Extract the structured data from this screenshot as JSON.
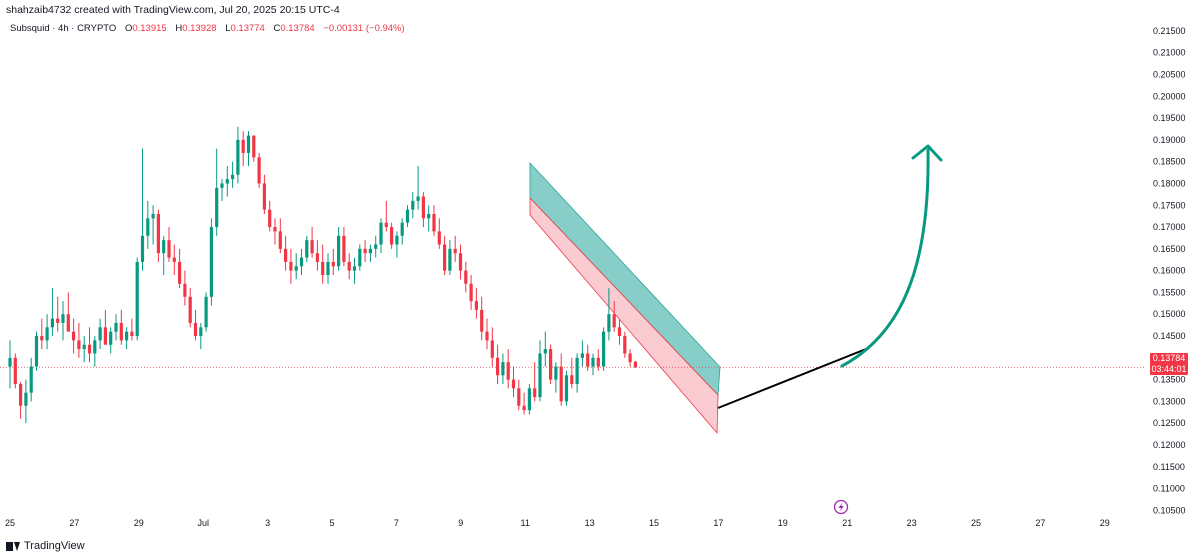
{
  "header": {
    "credit": "shahzaib4732 created with TradingView.com, Jul 20, 2025 20:15 UTC-4",
    "symbol": "Subsquid · 4h · CRYPTO",
    "o_label": "O",
    "o_value": "0.13915",
    "h_label": "H",
    "h_value": "0.13928",
    "l_label": "L",
    "l_value": "0.13774",
    "c_label": "C",
    "c_value": "0.13784",
    "change": "−0.00131 (−0.94%)"
  },
  "price_tag": {
    "price": "0.13784",
    "countdown": "03:44:01"
  },
  "footer": {
    "brand": "TradingView"
  },
  "colors": {
    "up": "#089981",
    "down": "#f23645",
    "arrow": "#089981",
    "channel_up": "#26a69a",
    "channel_down": "#f7a9b0"
  },
  "icons": {
    "flash": "lightning-icon"
  },
  "chart_data": {
    "type": "candlestick",
    "ylim": [
      0.1005,
      0.2175
    ],
    "y_ticks": [
      "0.21500",
      "0.21000",
      "0.20500",
      "0.20000",
      "0.19500",
      "0.19000",
      "0.18500",
      "0.18000",
      "0.17500",
      "0.17000",
      "0.16500",
      "0.16000",
      "0.15500",
      "0.15000",
      "0.14500",
      "0.14000",
      "0.13500",
      "0.13000",
      "0.12500",
      "0.12000",
      "0.11500",
      "0.11000",
      "0.10500"
    ],
    "x_ticks": [
      "25",
      "27",
      "29",
      "Jul",
      "3",
      "5",
      "7",
      "9",
      "11",
      "13",
      "15",
      "17",
      "19",
      "21",
      "23",
      "25",
      "27",
      "29"
    ],
    "last_price": 0.13784,
    "candles": [
      [
        0.138,
        0.144,
        0.133,
        0.14
      ],
      [
        0.14,
        0.141,
        0.133,
        0.134
      ],
      [
        0.134,
        0.1345,
        0.126,
        0.129
      ],
      [
        0.129,
        0.135,
        0.125,
        0.132
      ],
      [
        0.132,
        0.14,
        0.13,
        0.138
      ],
      [
        0.138,
        0.146,
        0.137,
        0.145
      ],
      [
        0.145,
        0.149,
        0.142,
        0.144
      ],
      [
        0.144,
        0.15,
        0.142,
        0.147
      ],
      [
        0.147,
        0.156,
        0.145,
        0.149
      ],
      [
        0.149,
        0.154,
        0.146,
        0.148
      ],
      [
        0.148,
        0.153,
        0.144,
        0.15
      ],
      [
        0.15,
        0.155,
        0.147,
        0.146
      ],
      [
        0.146,
        0.149,
        0.141,
        0.144
      ],
      [
        0.144,
        0.148,
        0.14,
        0.142
      ],
      [
        0.142,
        0.145,
        0.139,
        0.143
      ],
      [
        0.143,
        0.147,
        0.139,
        0.141
      ],
      [
        0.141,
        0.145,
        0.138,
        0.144
      ],
      [
        0.144,
        0.149,
        0.142,
        0.147
      ],
      [
        0.147,
        0.151,
        0.144,
        0.143
      ],
      [
        0.143,
        0.147,
        0.141,
        0.146
      ],
      [
        0.146,
        0.15,
        0.144,
        0.148
      ],
      [
        0.148,
        0.151,
        0.143,
        0.144
      ],
      [
        0.144,
        0.147,
        0.142,
        0.146
      ],
      [
        0.146,
        0.149,
        0.144,
        0.145
      ],
      [
        0.145,
        0.163,
        0.144,
        0.162
      ],
      [
        0.162,
        0.188,
        0.16,
        0.168
      ],
      [
        0.168,
        0.176,
        0.165,
        0.172
      ],
      [
        0.172,
        0.175,
        0.166,
        0.173
      ],
      [
        0.173,
        0.174,
        0.162,
        0.164
      ],
      [
        0.164,
        0.168,
        0.159,
        0.167
      ],
      [
        0.167,
        0.17,
        0.162,
        0.163
      ],
      [
        0.163,
        0.166,
        0.159,
        0.162
      ],
      [
        0.162,
        0.165,
        0.156,
        0.157
      ],
      [
        0.157,
        0.16,
        0.152,
        0.154
      ],
      [
        0.154,
        0.156,
        0.147,
        0.148
      ],
      [
        0.148,
        0.151,
        0.144,
        0.145
      ],
      [
        0.145,
        0.148,
        0.142,
        0.147
      ],
      [
        0.147,
        0.155,
        0.146,
        0.154
      ],
      [
        0.154,
        0.172,
        0.152,
        0.17
      ],
      [
        0.17,
        0.188,
        0.168,
        0.179
      ],
      [
        0.179,
        0.181,
        0.176,
        0.18
      ],
      [
        0.18,
        0.184,
        0.177,
        0.181
      ],
      [
        0.181,
        0.185,
        0.179,
        0.182
      ],
      [
        0.182,
        0.193,
        0.18,
        0.19
      ],
      [
        0.19,
        0.192,
        0.184,
        0.187
      ],
      [
        0.187,
        0.192,
        0.184,
        0.191
      ],
      [
        0.191,
        0.191,
        0.185,
        0.186
      ],
      [
        0.186,
        0.187,
        0.179,
        0.18
      ],
      [
        0.18,
        0.182,
        0.173,
        0.174
      ],
      [
        0.174,
        0.176,
        0.169,
        0.17
      ],
      [
        0.17,
        0.172,
        0.166,
        0.169
      ],
      [
        0.169,
        0.172,
        0.164,
        0.165
      ],
      [
        0.165,
        0.168,
        0.16,
        0.162
      ],
      [
        0.162,
        0.165,
        0.157,
        0.16
      ],
      [
        0.16,
        0.164,
        0.158,
        0.161
      ],
      [
        0.161,
        0.165,
        0.159,
        0.163
      ],
      [
        0.163,
        0.168,
        0.162,
        0.167
      ],
      [
        0.167,
        0.17,
        0.163,
        0.164
      ],
      [
        0.164,
        0.167,
        0.16,
        0.162
      ],
      [
        0.162,
        0.166,
        0.157,
        0.159
      ],
      [
        0.159,
        0.164,
        0.157,
        0.162
      ],
      [
        0.162,
        0.165,
        0.159,
        0.161
      ],
      [
        0.161,
        0.17,
        0.16,
        0.168
      ],
      [
        0.168,
        0.17,
        0.161,
        0.162
      ],
      [
        0.162,
        0.164,
        0.158,
        0.16
      ],
      [
        0.16,
        0.163,
        0.157,
        0.161
      ],
      [
        0.161,
        0.166,
        0.16,
        0.165
      ],
      [
        0.165,
        0.167,
        0.162,
        0.164
      ],
      [
        0.164,
        0.166,
        0.162,
        0.165
      ],
      [
        0.165,
        0.168,
        0.163,
        0.166
      ],
      [
        0.166,
        0.172,
        0.164,
        0.171
      ],
      [
        0.171,
        0.176,
        0.169,
        0.17
      ],
      [
        0.17,
        0.171,
        0.165,
        0.166
      ],
      [
        0.166,
        0.169,
        0.163,
        0.168
      ],
      [
        0.168,
        0.172,
        0.166,
        0.171
      ],
      [
        0.171,
        0.175,
        0.17,
        0.174
      ],
      [
        0.174,
        0.178,
        0.172,
        0.176
      ],
      [
        0.176,
        0.184,
        0.174,
        0.177
      ],
      [
        0.177,
        0.178,
        0.17,
        0.172
      ],
      [
        0.172,
        0.175,
        0.169,
        0.173
      ],
      [
        0.173,
        0.175,
        0.168,
        0.169
      ],
      [
        0.169,
        0.172,
        0.165,
        0.166
      ],
      [
        0.166,
        0.168,
        0.159,
        0.16
      ],
      [
        0.16,
        0.167,
        0.159,
        0.165
      ],
      [
        0.165,
        0.168,
        0.162,
        0.164
      ],
      [
        0.164,
        0.166,
        0.158,
        0.16
      ],
      [
        0.16,
        0.162,
        0.155,
        0.157
      ],
      [
        0.157,
        0.159,
        0.151,
        0.153
      ],
      [
        0.153,
        0.156,
        0.149,
        0.151
      ],
      [
        0.151,
        0.154,
        0.144,
        0.146
      ],
      [
        0.146,
        0.149,
        0.142,
        0.144
      ],
      [
        0.144,
        0.147,
        0.138,
        0.14
      ],
      [
        0.14,
        0.143,
        0.134,
        0.136
      ],
      [
        0.136,
        0.141,
        0.134,
        0.139
      ],
      [
        0.139,
        0.142,
        0.133,
        0.135
      ],
      [
        0.135,
        0.138,
        0.131,
        0.133
      ],
      [
        0.133,
        0.135,
        0.128,
        0.129
      ],
      [
        0.129,
        0.132,
        0.127,
        0.128
      ],
      [
        0.128,
        0.134,
        0.127,
        0.133
      ],
      [
        0.133,
        0.139,
        0.13,
        0.131
      ],
      [
        0.131,
        0.144,
        0.13,
        0.141
      ],
      [
        0.141,
        0.146,
        0.138,
        0.142
      ],
      [
        0.142,
        0.143,
        0.134,
        0.135
      ],
      [
        0.135,
        0.139,
        0.132,
        0.138
      ],
      [
        0.138,
        0.141,
        0.129,
        0.13
      ],
      [
        0.13,
        0.137,
        0.129,
        0.136
      ],
      [
        0.136,
        0.14,
        0.133,
        0.134
      ],
      [
        0.134,
        0.141,
        0.132,
        0.14
      ],
      [
        0.14,
        0.144,
        0.138,
        0.141
      ],
      [
        0.141,
        0.143,
        0.137,
        0.138
      ],
      [
        0.138,
        0.141,
        0.136,
        0.14
      ],
      [
        0.14,
        0.142,
        0.137,
        0.138
      ],
      [
        0.138,
        0.147,
        0.137,
        0.146
      ],
      [
        0.146,
        0.156,
        0.144,
        0.15
      ],
      [
        0.15,
        0.153,
        0.146,
        0.147
      ],
      [
        0.147,
        0.149,
        0.143,
        0.145
      ],
      [
        0.145,
        0.146,
        0.14,
        0.141
      ],
      [
        0.141,
        0.142,
        0.138,
        0.139
      ],
      [
        0.1391,
        0.1393,
        0.1377,
        0.1378
      ]
    ]
  }
}
